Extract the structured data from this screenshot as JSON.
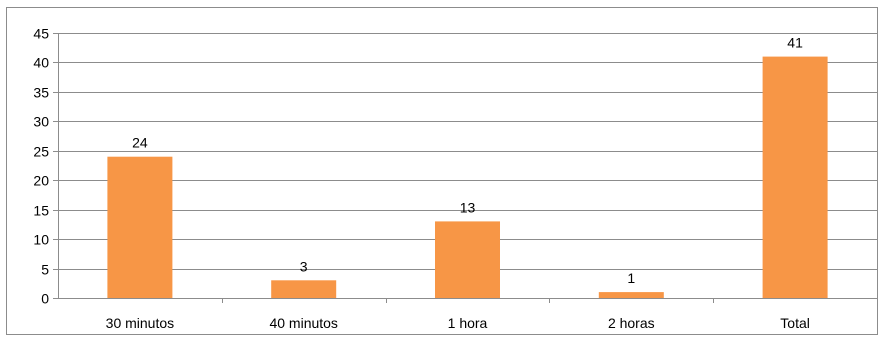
{
  "chart_data": {
    "type": "bar",
    "categories": [
      "30 minutos",
      "40 minutos",
      "1 hora",
      "2 horas",
      "Total"
    ],
    "values": [
      24,
      3,
      13,
      1,
      41
    ],
    "data_labels": [
      "24",
      "3",
      "13",
      "1",
      "41"
    ],
    "title": "",
    "xlabel": "",
    "ylabel": "",
    "ylim": [
      0,
      45
    ],
    "yticks": [
      0,
      5,
      10,
      15,
      20,
      25,
      30,
      35,
      40,
      45
    ],
    "ytick_labels": [
      "0",
      "5",
      "10",
      "15",
      "20",
      "25",
      "30",
      "35",
      "40",
      "45"
    ],
    "grid": true,
    "legend": "none",
    "bar_color": "#F79646",
    "grid_color": "#8C8C8C"
  }
}
